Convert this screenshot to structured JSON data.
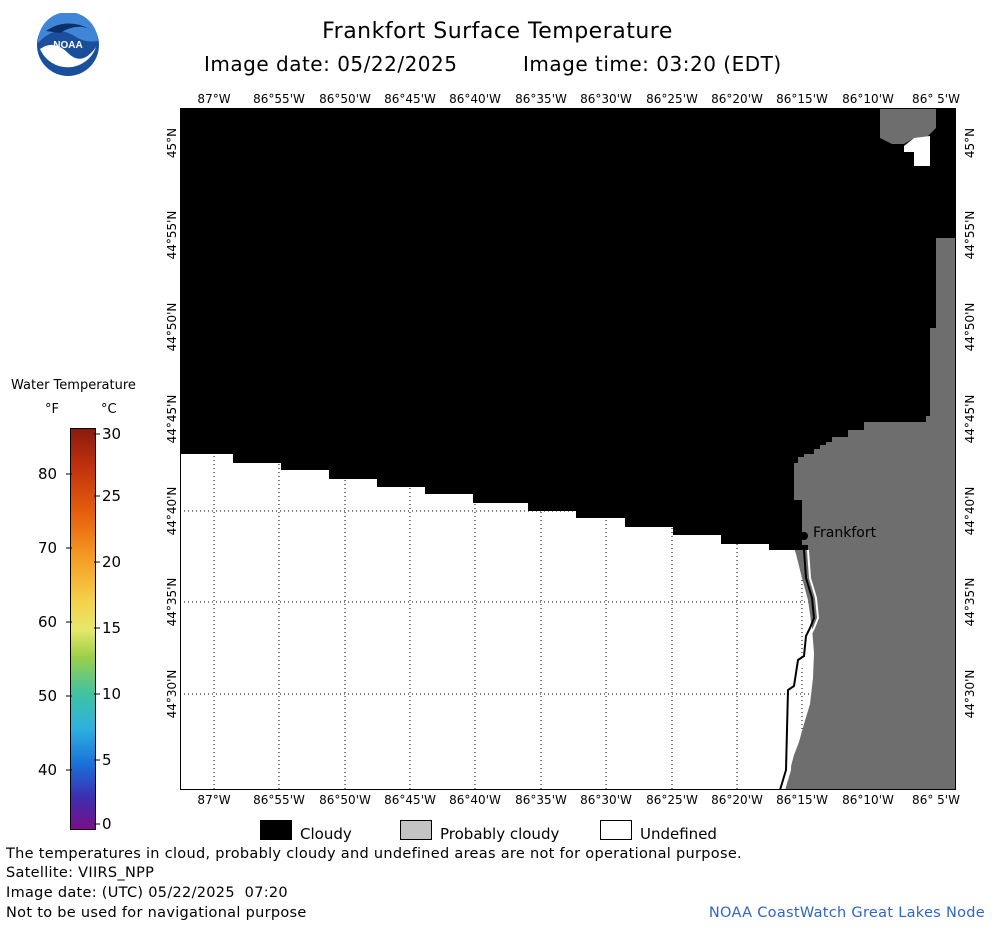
{
  "header": {
    "title": "Frankfort Surface Temperature",
    "image_date": "Image date: 05/22/2025",
    "image_time": "Image time: 03:20 (EDT)"
  },
  "logo": {
    "text": "NOAA"
  },
  "map": {
    "lon_labels": [
      "87°W",
      "86°55'W",
      "86°50'W",
      "86°45'W",
      "86°40'W",
      "86°35'W",
      "86°30'W",
      "86°25'W",
      "86°20'W",
      "86°15'W",
      "86°10'W",
      "86° 5'W"
    ],
    "lat_labels": [
      "45°N",
      "44°55'N",
      "44°50'N",
      "44°45'N",
      "44°40'N",
      "44°35'N",
      "44°30'N"
    ],
    "place_label": "Frankfort",
    "colors": {
      "cloudy": "#000000",
      "probably_cloudy": "#6e6e6e",
      "undefined": "#ffffff"
    }
  },
  "color_scale": {
    "title": "Water Temperature",
    "unit_f": "°F",
    "unit_c": "°C",
    "f_ticks": [
      "80",
      "70",
      "60",
      "50",
      "40"
    ],
    "c_ticks": [
      "30",
      "25",
      "20",
      "15",
      "10",
      "5",
      "0"
    ]
  },
  "legend": {
    "cloudy": "Cloudy",
    "probably_cloudy": "Probably cloudy",
    "undefined": "Undefined"
  },
  "footer": {
    "note": "The temperatures in cloud, probably cloudy and undefined areas are not for operational purpose.",
    "satellite": "Satellite: VIIRS_NPP",
    "utc_date": "Image date: (UTC) 05/22/2025  07:20",
    "nav": "Not to be used for navigational purpose",
    "credit": "NOAA CoastWatch Great Lakes Node"
  }
}
